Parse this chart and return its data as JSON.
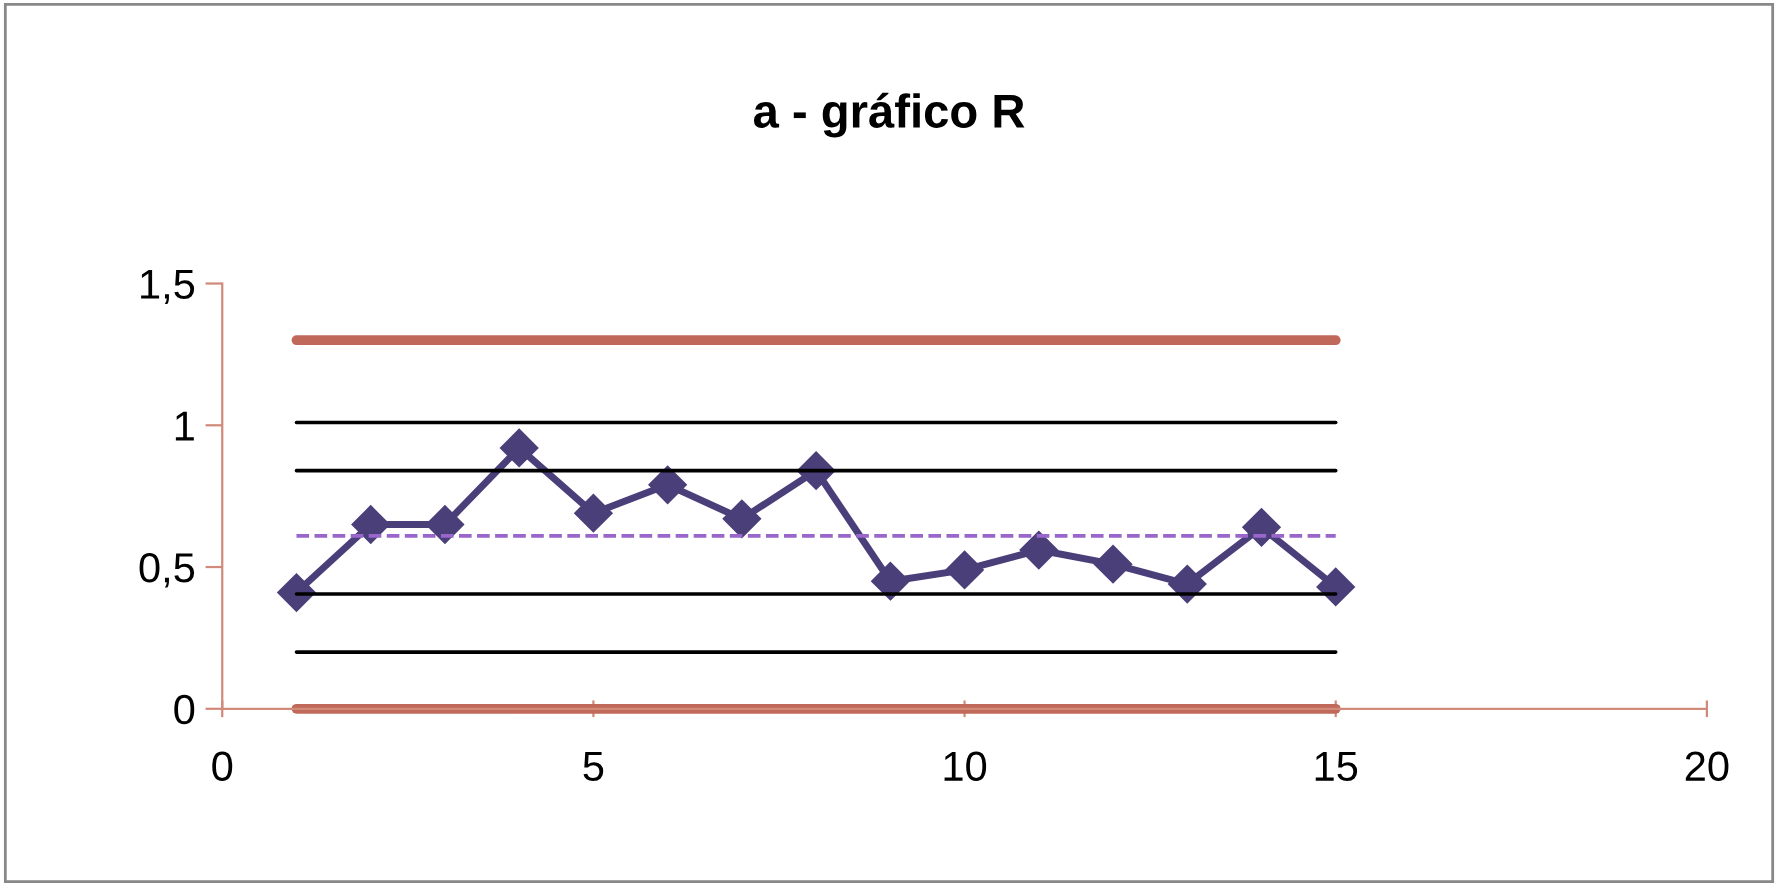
{
  "chart_data": {
    "type": "line",
    "title": "a - gráfico R",
    "x": [
      1,
      2,
      3,
      4,
      5,
      6,
      7,
      8,
      9,
      10,
      11,
      12,
      13,
      14,
      15
    ],
    "series": [
      {
        "color": "#4b3f7a",
        "marker": "diamond",
        "values": [
          0.41,
          0.65,
          0.65,
          0.92,
          0.69,
          0.79,
          0.67,
          0.84,
          0.45,
          0.49,
          0.56,
          0.51,
          0.44,
          0.64,
          0.43
        ]
      },
      {
        "color": "#c0695a",
        "values": [
          1.3,
          1.3,
          1.3,
          1.3,
          1.3,
          1.3,
          1.3,
          1.3,
          1.3,
          1.3,
          1.3,
          1.3,
          1.3,
          1.3,
          1.3
        ],
        "marker": "none"
      },
      {
        "color": "#000000",
        "values": [
          1.01,
          1.01,
          1.01,
          1.01,
          1.01,
          1.01,
          1.01,
          1.01,
          1.01,
          1.01,
          1.01,
          1.01,
          1.01,
          1.01,
          1.01
        ],
        "marker": "none"
      },
      {
        "color": "#000000",
        "values": [
          0.84,
          0.84,
          0.84,
          0.84,
          0.84,
          0.84,
          0.84,
          0.84,
          0.84,
          0.84,
          0.84,
          0.84,
          0.84,
          0.84,
          0.84
        ],
        "marker": "none"
      },
      {
        "color": "#9966cc",
        "values": [
          0.61,
          0.61,
          0.61,
          0.61,
          0.61,
          0.61,
          0.61,
          0.61,
          0.61,
          0.61,
          0.61,
          0.61,
          0.61,
          0.61,
          0.61
        ],
        "marker": "none",
        "line_style": "dashed"
      },
      {
        "color": "#000000",
        "values": [
          0.405,
          0.405,
          0.405,
          0.405,
          0.405,
          0.405,
          0.405,
          0.405,
          0.405,
          0.405,
          0.405,
          0.405,
          0.405,
          0.405,
          0.405
        ],
        "marker": "none"
      },
      {
        "color": "#000000",
        "values": [
          0.2,
          0.2,
          0.2,
          0.2,
          0.2,
          0.2,
          0.2,
          0.2,
          0.2,
          0.2,
          0.2,
          0.2,
          0.2,
          0.2,
          0.2
        ],
        "marker": "none"
      },
      {
        "color": "#c0695a",
        "values": [
          0,
          0,
          0,
          0,
          0,
          0,
          0,
          0,
          0,
          0,
          0,
          0,
          0,
          0,
          0
        ],
        "marker": "none"
      }
    ],
    "xlim": [
      0,
      20
    ],
    "xticks": [
      0,
      5,
      10,
      15,
      20
    ],
    "ylim": [
      0,
      1.5
    ],
    "yticks": [
      0,
      {
        "value": 0.5,
        "label": "0,5"
      },
      1,
      {
        "value": 1.5,
        "label": "1,5"
      }
    ],
    "grid": false,
    "legend": false
  }
}
